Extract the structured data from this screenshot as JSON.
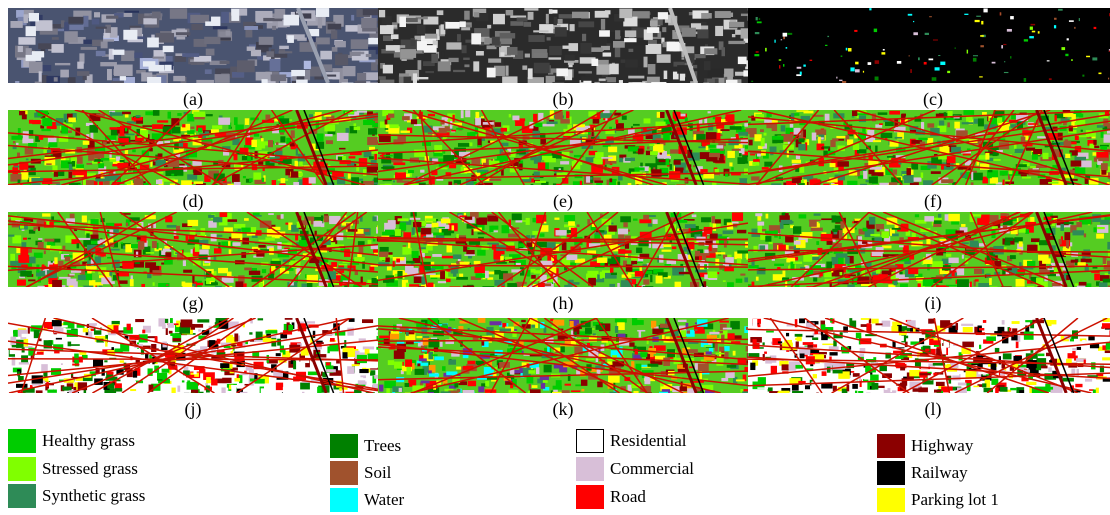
{
  "figure": {
    "panel_labels": [
      "(a)",
      "(b)",
      "(c)",
      "(d)",
      "(e)",
      "(f)",
      "(g)",
      "(h)",
      "(i)",
      "(j)",
      "(k)",
      "(l)"
    ],
    "legend": [
      {
        "label": "Healthy grass",
        "color": "#00cc00"
      },
      {
        "label": "Stressed grass",
        "color": "#80ff00"
      },
      {
        "label": "Synthetic grass",
        "color": "#2e8b57"
      },
      {
        "label": "Trees",
        "color": "#008000"
      },
      {
        "label": "Soil",
        "color": "#a0522d"
      },
      {
        "label": "Water",
        "color": "#00ffff"
      },
      {
        "label": "Residential",
        "color": "#ffffff"
      },
      {
        "label": "Commercial",
        "color": "#d8bfd8"
      },
      {
        "label": "Road",
        "color": "#ff0000"
      },
      {
        "label": "Highway",
        "color": "#8b0000"
      },
      {
        "label": "Railway",
        "color": "#000000"
      },
      {
        "label": "Parking lot 1",
        "color": "#ffff00"
      }
    ]
  }
}
